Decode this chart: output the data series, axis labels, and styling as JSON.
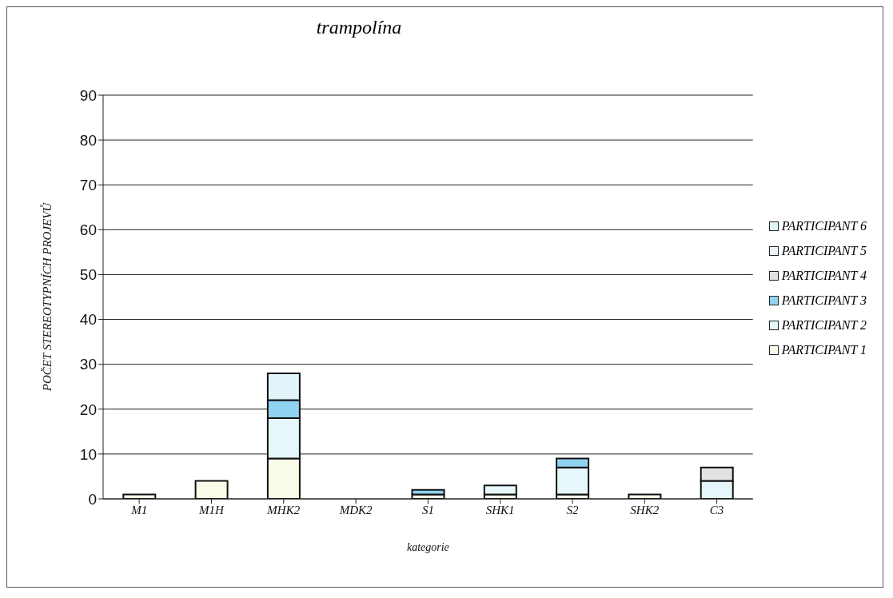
{
  "chart_data": {
    "type": "bar",
    "title": "trampolína",
    "xlabel": "kategorie",
    "ylabel": "POČET STEREOTYPNÍCH PROJEVŮ",
    "categories": [
      "M1",
      "M1H",
      "MHK2",
      "MDK2",
      "S1",
      "SHK1",
      "S2",
      "SHK2",
      "C3"
    ],
    "stacked": true,
    "ylim": [
      0,
      90
    ],
    "yticks": [
      0,
      10,
      20,
      30,
      40,
      50,
      60,
      70,
      80,
      90
    ],
    "grid": "y",
    "legend": "right",
    "series": [
      {
        "name": "PARTICIPANT 1",
        "color": "#fbfbea",
        "values": [
          1,
          4,
          9,
          0,
          1,
          1,
          1,
          1,
          0
        ]
      },
      {
        "name": "PARTICIPANT 2",
        "color": "#e6f7fc",
        "values": [
          0,
          0,
          9,
          0,
          0,
          2,
          6,
          0,
          4
        ]
      },
      {
        "name": "PARTICIPANT 3",
        "color": "#8fd3f0",
        "values": [
          0,
          0,
          4,
          0,
          1,
          0,
          2,
          0,
          0
        ]
      },
      {
        "name": "PARTICIPANT 4",
        "color": "#e2e2e2",
        "values": [
          0,
          0,
          0,
          0,
          0,
          0,
          0,
          0,
          3
        ]
      },
      {
        "name": "PARTICIPANT 5",
        "color": "#eef3fb",
        "values": [
          0,
          0,
          0,
          0,
          0,
          0,
          0,
          0,
          0
        ]
      },
      {
        "name": "PARTICIPANT 6",
        "color": "#e1f4fa",
        "values": [
          0,
          0,
          6,
          0,
          0,
          0,
          0,
          0,
          0
        ]
      }
    ]
  }
}
